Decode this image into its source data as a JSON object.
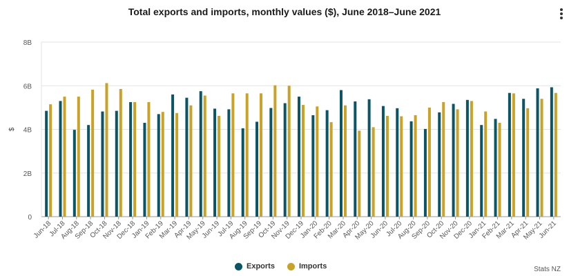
{
  "chart_data": {
    "type": "bar",
    "title": "Total exports and imports, monthly values ($), June 2018–June 2021",
    "xlabel": "",
    "ylabel": "$",
    "ylim": [
      0,
      8
    ],
    "yticks": [
      "0",
      "2B",
      "4B",
      "6B",
      "8B"
    ],
    "categories": [
      "Jun-18",
      "Jul-18",
      "Aug-18",
      "Sep-18",
      "Oct-18",
      "Nov-18",
      "Dec-18",
      "Jan-19",
      "Feb-19",
      "Mar-19",
      "Apr-19",
      "May-19",
      "Jun-19",
      "Jul-19",
      "Aug-19",
      "Sep-19",
      "Oct-19",
      "Nov-19",
      "Dec-19",
      "Jan-20",
      "Feb-20",
      "Mar-20",
      "Apr-20",
      "May-20",
      "Jun-20",
      "Jul-20",
      "Aug-20",
      "Sep-20",
      "Oct-20",
      "Nov-20",
      "Dec-20",
      "Jan-21",
      "Feb-21",
      "Mar-21",
      "Apr-21",
      "May-21",
      "Jun-21"
    ],
    "series": [
      {
        "name": "Exports",
        "color": "#0b5566",
        "values": [
          4.85,
          5.3,
          3.98,
          4.2,
          4.82,
          4.85,
          5.25,
          4.3,
          4.7,
          5.6,
          5.45,
          5.75,
          4.95,
          4.92,
          4.05,
          4.35,
          4.98,
          5.2,
          5.5,
          4.65,
          4.88,
          5.8,
          5.28,
          5.38,
          5.07,
          4.97,
          4.37,
          4.02,
          4.78,
          5.17,
          5.35,
          4.2,
          4.48,
          5.67,
          5.4,
          5.88,
          5.93
        ]
      },
      {
        "name": "Imports",
        "color": "#c9a227",
        "values": [
          5.15,
          5.5,
          5.5,
          5.82,
          6.12,
          5.85,
          5.25,
          5.25,
          4.8,
          4.75,
          5.1,
          5.55,
          4.62,
          5.65,
          5.65,
          5.65,
          6.02,
          6.0,
          5.12,
          5.05,
          4.33,
          5.1,
          3.94,
          4.1,
          4.62,
          4.6,
          4.65,
          5.0,
          5.25,
          4.92,
          5.3,
          4.82,
          4.3,
          5.65,
          4.97,
          5.4,
          5.67
        ]
      }
    ]
  },
  "legend": {
    "exports_label": "Exports",
    "imports_label": "Imports"
  },
  "credit": "Stats NZ"
}
